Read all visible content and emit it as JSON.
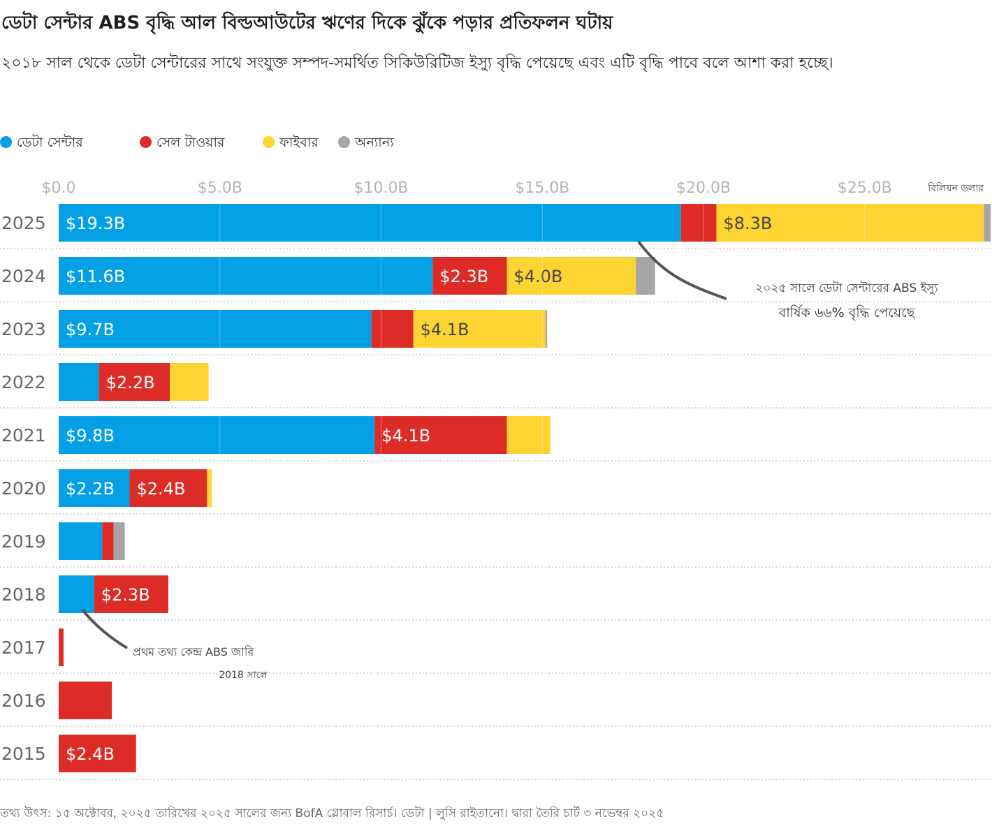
{
  "title": "ডেটা সেন্টার ABS বৃদ্ধি আল বিল্ডআউটের ঋণের দিকে ঝুঁকে পড়ার প্রতিফলন ঘটায়",
  "subtitle": "২০১৮ সাল থেকে ডেটা সেন্টারের সাথে সংযুক্ত সম্পদ-সমর্থিত সিকিউরিটিজ ইস্যু বৃদ্ধি পেয়েছে এবং এটি বৃদ্ধি পাবে বলে আশা করা হচ্ছে।",
  "legend": [
    {
      "label": "ডেটা সেন্টার",
      "color": "#04a0e6"
    },
    {
      "label": "সেল টাওয়ার",
      "color": "#dd2b27"
    },
    {
      "label": "ফাইবার",
      "color": "#fdd431"
    },
    {
      "label": "অন্যান্য",
      "color": "#a6a6a6"
    }
  ],
  "footer": "তথ্য উৎস: ১৫ অক্টোবর, ২০২৫ তারিখের ২০২৫ সালের জন্য BofA গ্লোবাল রিসার্চ। ডেটা | লুসি রাইতানো। দ্বারা তৈরি চার্ট ৩ নভেম্বর ২০২৫",
  "chart_data": {
    "type": "bar",
    "orientation": "horizontal",
    "stacked": true,
    "unit_label": "বিলিয়ন ডলার",
    "xlim": [
      0,
      29
    ],
    "ticks": [
      0,
      5,
      10,
      15,
      20,
      25
    ],
    "tick_labels": [
      "$0.0",
      "$5.0B",
      "$10.0B",
      "$15.0B",
      "$20.0B",
      "$25.0B"
    ],
    "grid": true,
    "legend_position": "top-left",
    "categories": [
      "2025",
      "2024",
      "2023",
      "2022",
      "2021",
      "2020",
      "2019",
      "2018",
      "2017",
      "2016",
      "2015"
    ],
    "series": [
      {
        "name": "ডেটা সেন্টার",
        "color": "#04a0e6",
        "values": [
          19.3,
          11.6,
          9.7,
          1.25,
          9.8,
          2.2,
          1.35,
          1.1,
          0,
          0,
          0
        ],
        "labels": [
          "$19.3B",
          "$11.6B",
          "$9.7B",
          "",
          "$9.8B",
          "$2.2B",
          "",
          "",
          "",
          "",
          ""
        ]
      },
      {
        "name": "সেল টাওয়ার",
        "color": "#dd2b27",
        "values": [
          1.1,
          2.3,
          1.3,
          2.2,
          4.1,
          2.4,
          0.35,
          2.3,
          0.15,
          1.65,
          2.4
        ],
        "labels": [
          "",
          "$2.3B",
          "",
          "$2.2B",
          "$4.1B",
          "$2.4B",
          "",
          "$2.3B",
          "",
          "",
          "$2.4B"
        ]
      },
      {
        "name": "ফাইবার",
        "color": "#fdd431",
        "values": [
          8.3,
          4.0,
          4.1,
          1.2,
          1.35,
          0.15,
          0,
          0,
          0,
          0,
          0
        ],
        "labels": [
          "$8.3B",
          "$4.0B",
          "$4.1B",
          "",
          "",
          "",
          "",
          "",
          "",
          "",
          ""
        ]
      },
      {
        "name": "অন্যান্য",
        "color": "#a6a6a6",
        "values": [
          0.3,
          0.6,
          0.05,
          0,
          0,
          0,
          0.35,
          0,
          0,
          0,
          0
        ],
        "labels": [
          "",
          "",
          "",
          "",
          "",
          "",
          "",
          "",
          "",
          "",
          ""
        ]
      }
    ],
    "annotations": [
      {
        "text_lines": [
          "২০২৫ সালে ডেটা সেন্টারের ABS ইস্যু",
          "বার্ষিক ৬৬% বৃদ্ধি পেয়েছে"
        ],
        "category": "2025",
        "x": 18.3
      },
      {
        "text_lines": [
          "প্রথম তথ্য কেন্দ্র ABS জারি",
          "2018 সালে"
        ],
        "category": "2018",
        "x": 0.8
      }
    ]
  }
}
